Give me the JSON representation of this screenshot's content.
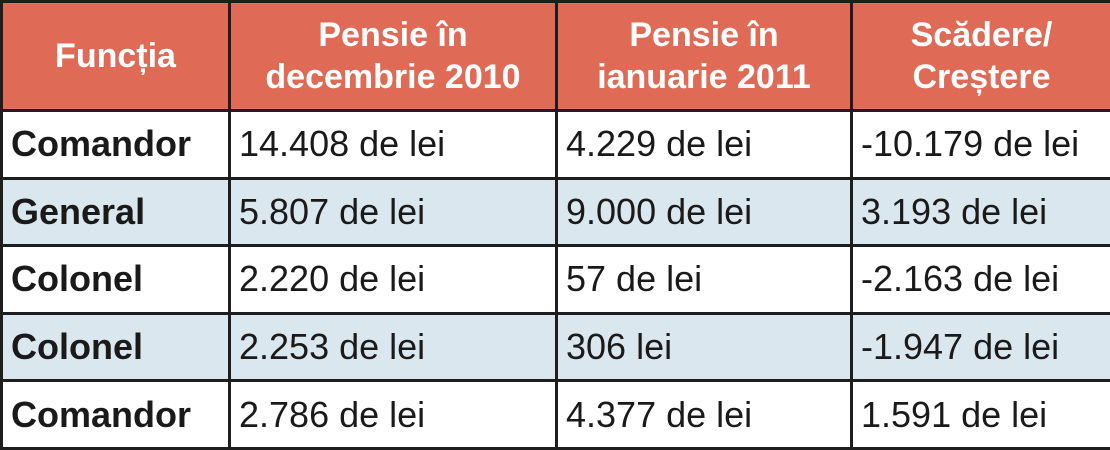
{
  "table": {
    "header": [
      "Funcția",
      "Pensie în decembrie 2010",
      "Pensie în ianuarie 2011",
      "Scădere/ Creștere"
    ],
    "rows": [
      [
        "Comandor",
        "14.408 de lei",
        "4.229 de lei",
        "-10.179 de lei"
      ],
      [
        "General",
        "5.807 de lei",
        "9.000 de lei",
        "3.193 de lei"
      ],
      [
        "Colonel",
        "2.220 de lei",
        "57 de lei",
        "-2.163 de lei"
      ],
      [
        "Colonel",
        "2.253 de lei",
        "306 lei",
        "-1.947 de lei"
      ],
      [
        "Comandor",
        "2.786 de lei",
        "4.377 de lei",
        "1.591 de lei"
      ]
    ]
  }
}
